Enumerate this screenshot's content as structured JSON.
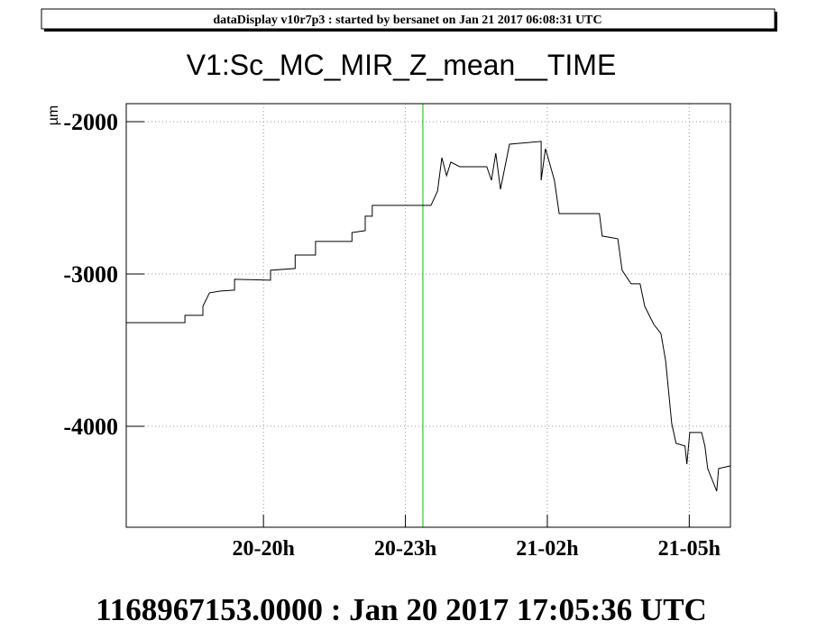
{
  "chart_data": {
    "type": "line",
    "header": "dataDisplay v10r7p3 : started by bersanet on Jan 21 2017 06:08:31 UTC",
    "title": "V1:Sc_MC_MIR_Z_mean__TIME",
    "y_label": "µm",
    "footer": "1168967153.0000 : Jan 20 2017 17:05:36 UTC",
    "xlim": [
      17.1,
      29.87
    ],
    "xticks": [
      {
        "value": 20,
        "label": "20-20h"
      },
      {
        "value": 23,
        "label": "20-23h"
      },
      {
        "value": 26,
        "label": "21-02h"
      },
      {
        "value": 29,
        "label": "21-05h"
      }
    ],
    "ylim": [
      -4663,
      -1882
    ],
    "yticks": [
      -2000,
      -3000,
      -4000
    ],
    "grid": true,
    "cursor_x": 23.37,
    "cursor_color": "#00c000",
    "series": [
      {
        "color": "#000000",
        "x": [
          17.1,
          18.34,
          18.34,
          18.72,
          18.72,
          18.86,
          19.1,
          19.39,
          19.39,
          20.15,
          20.15,
          20.67,
          20.67,
          21.1,
          21.1,
          21.87,
          21.87,
          22.15,
          22.15,
          22.3,
          22.3,
          23.54,
          23.68,
          23.77,
          23.87,
          23.96,
          24.15,
          24.72,
          24.82,
          24.91,
          25.01,
          25.2,
          25.87,
          25.87,
          25.96,
          26.15,
          26.25,
          27.1,
          27.16,
          27.49,
          27.58,
          27.77,
          27.96,
          28.06,
          28.25,
          28.4,
          28.5,
          28.63,
          28.72,
          28.91,
          28.95,
          29.01,
          29.26,
          29.33,
          29.39,
          29.58,
          29.62,
          29.87
        ],
        "values": [
          -3320,
          -3320,
          -3272,
          -3272,
          -3213,
          -3124,
          -3112,
          -3106,
          -3035,
          -3041,
          -2976,
          -2964,
          -2876,
          -2876,
          -2787,
          -2787,
          -2728,
          -2716,
          -2621,
          -2621,
          -2550,
          -2550,
          -2456,
          -2237,
          -2355,
          -2266,
          -2296,
          -2296,
          -2385,
          -2207,
          -2444,
          -2148,
          -2130,
          -2385,
          -2178,
          -2385,
          -2604,
          -2604,
          -2751,
          -2769,
          -2976,
          -3065,
          -3065,
          -3213,
          -3331,
          -3390,
          -3568,
          -3982,
          -4112,
          -4130,
          -4248,
          -4041,
          -4041,
          -4130,
          -4278,
          -4426,
          -4278,
          -4260
        ]
      }
    ]
  }
}
